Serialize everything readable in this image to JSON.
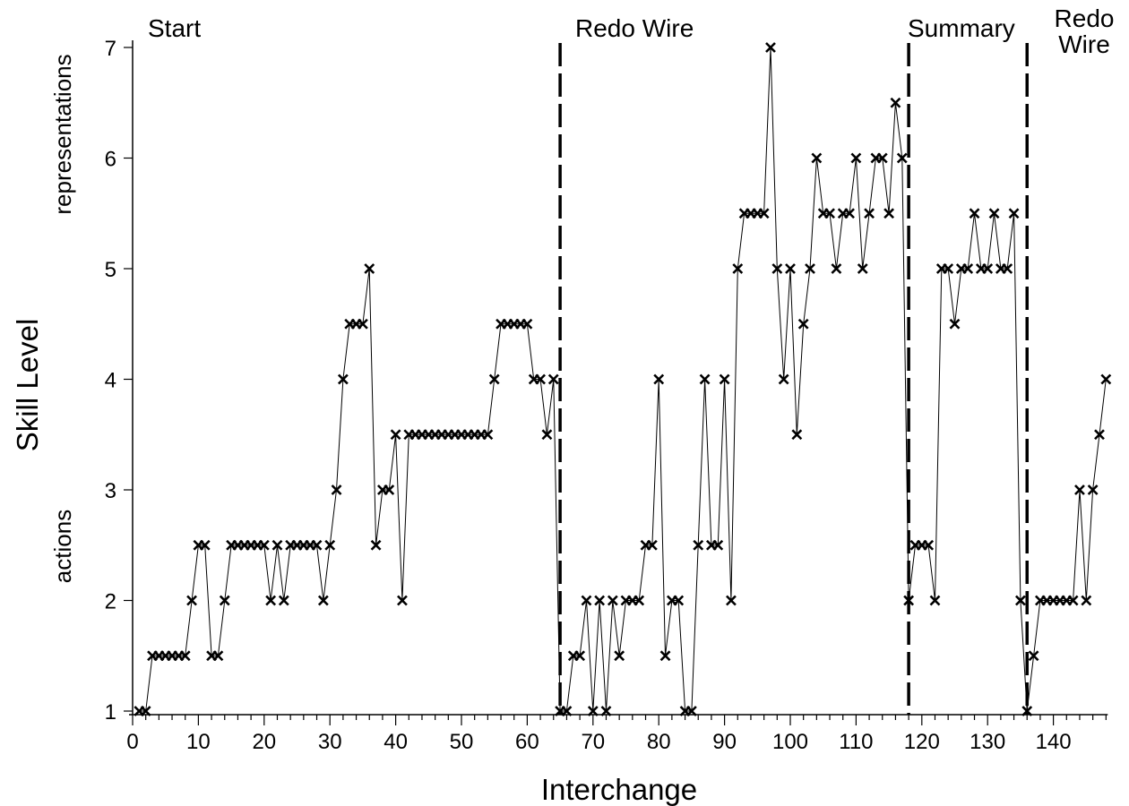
{
  "chart_data": {
    "type": "line",
    "title": "",
    "xlabel": "Interchange",
    "ylabel": "Skill Level",
    "xlim": [
      0,
      148
    ],
    "ylim": [
      1,
      7
    ],
    "xticks": [
      0,
      10,
      20,
      30,
      40,
      50,
      60,
      70,
      80,
      90,
      100,
      110,
      120,
      130,
      140
    ],
    "yticks": [
      1,
      2,
      3,
      4,
      5,
      6,
      7
    ],
    "grid": false,
    "marker": "x",
    "y_side_labels": {
      "lower": "actions",
      "upper": "representations"
    },
    "phase_boundaries": [
      65,
      118,
      136
    ],
    "phases": [
      {
        "label": "Start",
        "x_start": 0,
        "x_end": 65
      },
      {
        "label": "Redo Wire",
        "x_start": 65,
        "x_end": 118
      },
      {
        "label": "Summary",
        "x_start": 118,
        "x_end": 136
      },
      {
        "label": "Redo Wire",
        "x_start": 136,
        "x_end": 148
      }
    ],
    "series": [
      {
        "x": [
          1,
          2,
          3,
          4,
          5,
          6,
          7,
          8,
          9,
          10,
          11,
          12,
          13,
          14,
          15,
          16,
          17,
          18,
          19,
          20,
          21,
          22,
          23,
          24,
          25,
          26,
          27,
          28,
          29,
          30,
          31,
          32,
          33,
          34,
          35,
          36,
          37,
          38,
          39,
          40,
          41,
          42,
          43,
          44,
          45,
          46,
          47,
          48,
          49,
          50,
          51,
          52,
          53,
          54,
          55,
          56,
          57,
          58,
          59,
          60,
          61,
          62,
          63,
          64,
          65,
          66,
          67,
          68,
          69,
          70,
          71,
          72,
          73,
          74,
          75,
          76,
          77,
          78,
          79,
          80,
          81,
          82,
          83,
          84,
          85,
          86,
          87,
          88,
          89,
          90,
          91,
          92,
          93,
          94,
          95,
          96,
          97,
          98,
          99,
          100,
          101,
          102,
          103,
          104,
          105,
          106,
          107,
          108,
          109,
          110,
          111,
          112,
          113,
          114,
          115,
          116,
          117,
          118,
          119,
          120,
          121,
          122,
          123,
          124,
          125,
          126,
          127,
          128,
          129,
          130,
          131,
          132,
          133,
          134,
          135,
          136,
          137,
          138,
          139,
          140,
          141,
          142,
          143,
          144,
          145,
          146,
          147,
          148
        ],
        "y": [
          1,
          1,
          1.5,
          1.5,
          1.5,
          1.5,
          1.5,
          1.5,
          2,
          2.5,
          2.5,
          1.5,
          1.5,
          2,
          2.5,
          2.5,
          2.5,
          2.5,
          2.5,
          2.5,
          2,
          2.5,
          2,
          2.5,
          2.5,
          2.5,
          2.5,
          2.5,
          2,
          2.5,
          3,
          4,
          4.5,
          4.5,
          4.5,
          5,
          2.5,
          3,
          3,
          3.5,
          2,
          3.5,
          3.5,
          3.5,
          3.5,
          3.5,
          3.5,
          3.5,
          3.5,
          3.5,
          3.5,
          3.5,
          3.5,
          3.5,
          4,
          4.5,
          4.5,
          4.5,
          4.5,
          4.5,
          4,
          4,
          3.5,
          4,
          1,
          1,
          1.5,
          1.5,
          2,
          1,
          2,
          1,
          2,
          1.5,
          2,
          2,
          2,
          2.5,
          2.5,
          4,
          1.5,
          2,
          2,
          1,
          1,
          2.5,
          4,
          2.5,
          2.5,
          4,
          2,
          5,
          5.5,
          5.5,
          5.5,
          5.5,
          7,
          5,
          4,
          5,
          3.5,
          4.5,
          5,
          6,
          5.5,
          5.5,
          5,
          5.5,
          5.5,
          6,
          5,
          5.5,
          6,
          6,
          5.5,
          6.5,
          6,
          2,
          2.5,
          2.5,
          2.5,
          2,
          5,
          5,
          4.5,
          5,
          5,
          5.5,
          5,
          5,
          5.5,
          5,
          5,
          5.5,
          2,
          1,
          1.5,
          2,
          2,
          2,
          2,
          2,
          2,
          3,
          2,
          3,
          3.5,
          4
        ]
      }
    ]
  }
}
